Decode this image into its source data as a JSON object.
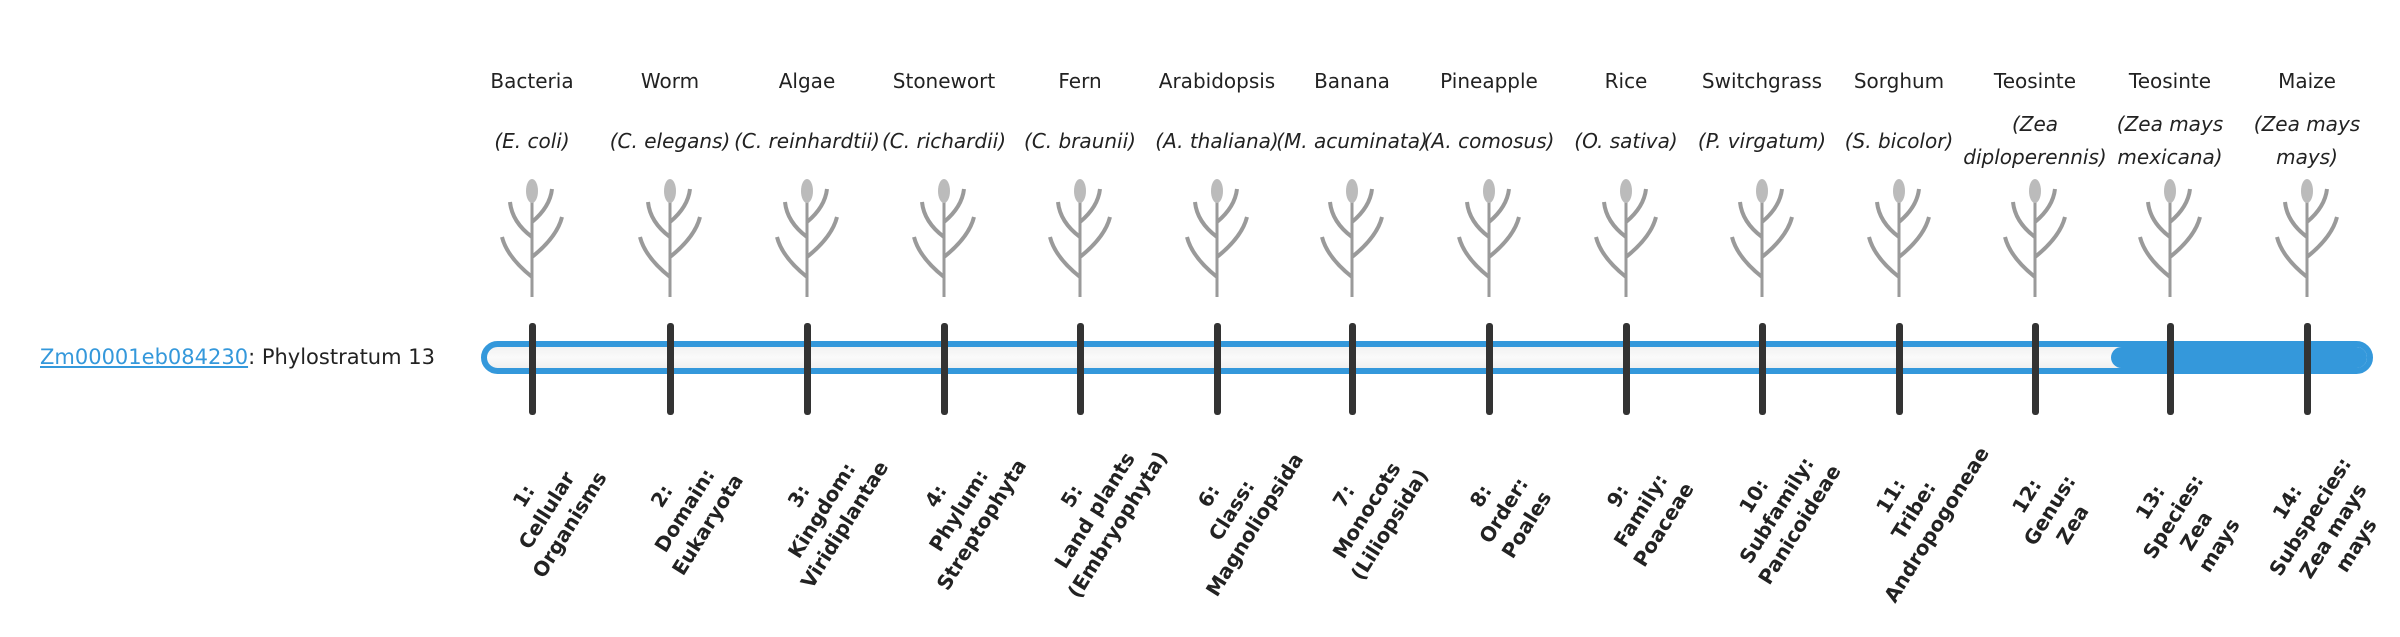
{
  "gene": {
    "id": "Zm00001eb084230",
    "suffix": ": Phylostratum 13"
  },
  "progress": {
    "phylostratum": 13,
    "total": 14,
    "fill_color": "#3498db"
  },
  "organisms": [
    {
      "common": "Bacteria",
      "sci": "(E. coli)",
      "icon": "bacteria-illustration"
    },
    {
      "common": "Worm",
      "sci": "(C. elegans)",
      "icon": "worm-illustration"
    },
    {
      "common": "Algae",
      "sci": "(C. reinhardtii)",
      "icon": "algae-illustration"
    },
    {
      "common": "Stonewort",
      "sci": "(C. richardii)",
      "icon": "stonewort-illustration"
    },
    {
      "common": "Fern",
      "sci": "(C. braunii)",
      "icon": "fern-illustration"
    },
    {
      "common": "Arabidopsis",
      "sci": "(A. thaliana)",
      "icon": "arabidopsis-illustration"
    },
    {
      "common": "Banana",
      "sci": "(M. acuminata)",
      "icon": "banana-illustration"
    },
    {
      "common": "Pineapple",
      "sci": "(A. comosus)",
      "icon": "pineapple-illustration"
    },
    {
      "common": "Rice",
      "sci": "(O. sativa)",
      "icon": "rice-illustration"
    },
    {
      "common": "Switchgrass",
      "sci": "(P. virgatum)",
      "icon": "switchgrass-illustration"
    },
    {
      "common": "Sorghum",
      "sci": "(S. bicolor)",
      "icon": "sorghum-illustration"
    },
    {
      "common": "Teosinte",
      "sci": "(Zea diploperennis)",
      "icon": "teosinte-illustration"
    },
    {
      "common": "Teosinte",
      "sci": "(Zea mays mexicana)",
      "icon": "teosinte-illustration"
    },
    {
      "common": "Maize",
      "sci": "(Zea mays mays)",
      "icon": "maize-illustration"
    }
  ],
  "strata": [
    [
      "1:",
      "Cellular",
      "Organisms"
    ],
    [
      "2:",
      "Domain:",
      "Eukaryota"
    ],
    [
      "3:",
      "Kingdom:",
      "Viridiplantae"
    ],
    [
      "4:",
      "Phylum:",
      "Streptophyta"
    ],
    [
      "5:",
      "Land plants",
      "(Embryophyta)"
    ],
    [
      "6:",
      "Class:",
      "Magnoliopsida"
    ],
    [
      "7:",
      "Monocots",
      "(Liliopsida)"
    ],
    [
      "8:",
      "Order:",
      "Poales"
    ],
    [
      "9:",
      "Family:",
      "Poaceae"
    ],
    [
      "10:",
      "Subfamily:",
      "Panicoideae"
    ],
    [
      "11:",
      "Tribe:",
      "Andropogoneae"
    ],
    [
      "12:",
      "Genus:",
      "Zea"
    ],
    [
      "13:",
      "Species:",
      "Zea",
      "mays"
    ],
    [
      "14:",
      "Subspecies:",
      "Zea mays",
      "mays"
    ]
  ]
}
